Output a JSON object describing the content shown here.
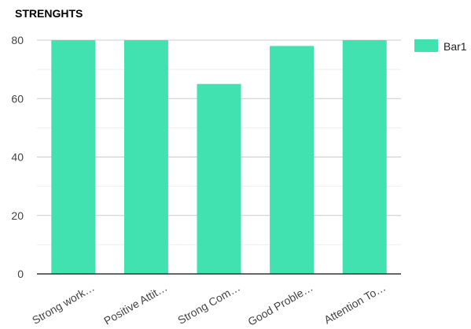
{
  "chart_data": {
    "type": "bar",
    "title": "STRENGHTS",
    "categories": [
      "Strong work…",
      "Positive Attit…",
      "Strong Com…",
      "Good Proble…",
      "Attention To…"
    ],
    "series": [
      {
        "name": "Bar1",
        "values": [
          80,
          80,
          65,
          78,
          80
        ],
        "color": "#42e2b0"
      }
    ],
    "y_ticks": [
      0,
      20,
      40,
      60,
      80
    ],
    "ylim": [
      0,
      80
    ],
    "grid": true,
    "legend_position": "right"
  }
}
